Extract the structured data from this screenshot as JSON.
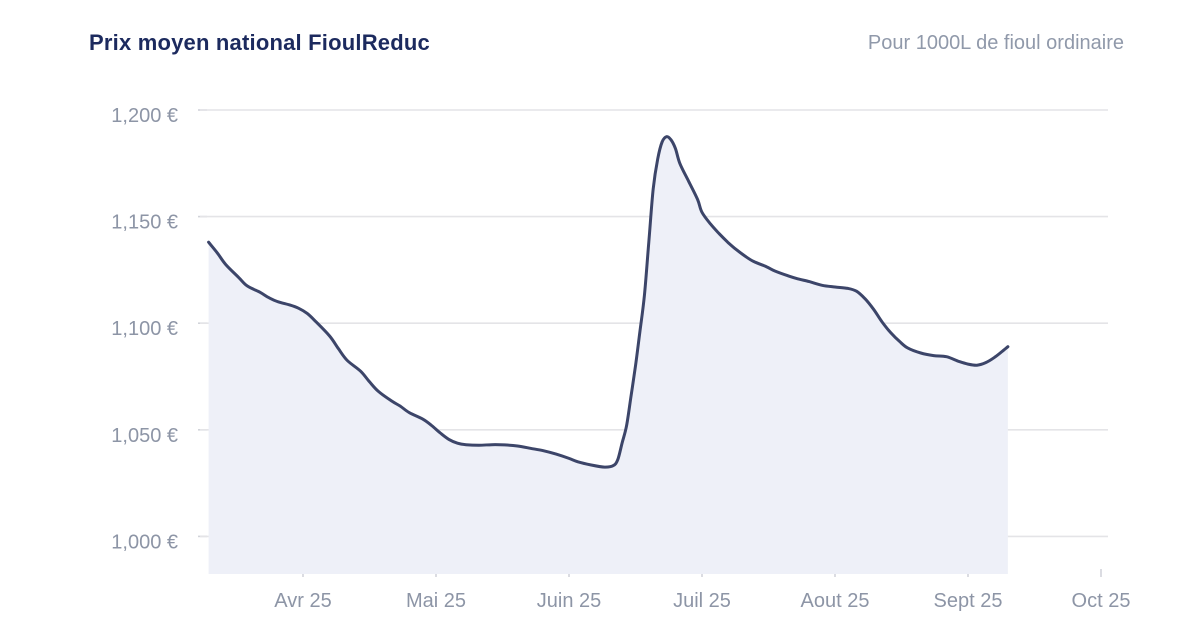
{
  "header": {
    "title": "Prix moyen national FioulReduc",
    "subtitle": "Pour 1000L de fioul ordinaire"
  },
  "colors": {
    "background": "#ffffff",
    "title": "#1c2a5e",
    "subtitle": "#9099aa",
    "axis_label": "#8d95a6",
    "gridline": "#e4e4e7",
    "tick": "#d2d4da",
    "line": "#3c4569",
    "fill": "#eef0f8"
  },
  "chart_data": {
    "type": "area",
    "title": "Prix moyen national FioulReduc",
    "subtitle": "Pour 1000L de fioul ordinaire",
    "series_name": "Prix moyen national",
    "unit": "EUR",
    "currency_symbol": "€",
    "grid": "horizontal",
    "legend": "none",
    "ylim": [
      1000,
      1200
    ],
    "y_ticks": [
      {
        "value": 1200,
        "label": "1,200 €"
      },
      {
        "value": 1150,
        "label": "1,150 €"
      },
      {
        "value": 1100,
        "label": "1,100 €"
      },
      {
        "value": 1050,
        "label": "1,050 €"
      },
      {
        "value": 1000,
        "label": "1,000 €"
      }
    ],
    "x_tick_labels": [
      "Avr 25",
      "Mai 25",
      "Juin 25",
      "Juil 25",
      "Aout 25",
      "Sept 25",
      "Oct 25"
    ],
    "points": [
      {
        "date": "2025-03-10",
        "value": 1138
      },
      {
        "date": "2025-03-12",
        "value": 1133
      },
      {
        "date": "2025-03-14",
        "value": 1127.5
      },
      {
        "date": "2025-03-17",
        "value": 1121.5
      },
      {
        "date": "2025-03-19",
        "value": 1117.5
      },
      {
        "date": "2025-03-22",
        "value": 1114.5
      },
      {
        "date": "2025-03-24",
        "value": 1112
      },
      {
        "date": "2025-03-26",
        "value": 1110.2
      },
      {
        "date": "2025-03-29",
        "value": 1108.5
      },
      {
        "date": "2025-03-31",
        "value": 1107
      },
      {
        "date": "2025-04-02",
        "value": 1104.5
      },
      {
        "date": "2025-04-04",
        "value": 1100.5
      },
      {
        "date": "2025-04-07",
        "value": 1094
      },
      {
        "date": "2025-04-09",
        "value": 1088
      },
      {
        "date": "2025-04-11",
        "value": 1082.5
      },
      {
        "date": "2025-04-14",
        "value": 1077.5
      },
      {
        "date": "2025-04-16",
        "value": 1072.5
      },
      {
        "date": "2025-04-18",
        "value": 1068
      },
      {
        "date": "2025-04-21",
        "value": 1063.5
      },
      {
        "date": "2025-04-23",
        "value": 1061
      },
      {
        "date": "2025-04-25",
        "value": 1058
      },
      {
        "date": "2025-04-28",
        "value": 1055
      },
      {
        "date": "2025-04-30",
        "value": 1052
      },
      {
        "date": "2025-05-02",
        "value": 1048.5
      },
      {
        "date": "2025-05-04",
        "value": 1045.5
      },
      {
        "date": "2025-05-06",
        "value": 1043.7
      },
      {
        "date": "2025-05-08",
        "value": 1043
      },
      {
        "date": "2025-05-11",
        "value": 1042.8
      },
      {
        "date": "2025-05-14",
        "value": 1043
      },
      {
        "date": "2025-05-17",
        "value": 1042.9
      },
      {
        "date": "2025-05-20",
        "value": 1042.4
      },
      {
        "date": "2025-05-23",
        "value": 1041.3
      },
      {
        "date": "2025-05-26",
        "value": 1040.2
      },
      {
        "date": "2025-05-29",
        "value": 1038.6
      },
      {
        "date": "2025-06-01",
        "value": 1036.6
      },
      {
        "date": "2025-06-03",
        "value": 1035
      },
      {
        "date": "2025-06-06",
        "value": 1033.5
      },
      {
        "date": "2025-06-09",
        "value": 1032.5
      },
      {
        "date": "2025-06-11",
        "value": 1033.2
      },
      {
        "date": "2025-06-12",
        "value": 1036
      },
      {
        "date": "2025-06-13",
        "value": 1044
      },
      {
        "date": "2025-06-14",
        "value": 1052
      },
      {
        "date": "2025-06-15",
        "value": 1066
      },
      {
        "date": "2025-06-16",
        "value": 1080
      },
      {
        "date": "2025-06-17",
        "value": 1096
      },
      {
        "date": "2025-06-18",
        "value": 1113
      },
      {
        "date": "2025-06-19",
        "value": 1138
      },
      {
        "date": "2025-06-20",
        "value": 1163
      },
      {
        "date": "2025-06-21",
        "value": 1177
      },
      {
        "date": "2025-06-22",
        "value": 1185
      },
      {
        "date": "2025-06-23",
        "value": 1187.5
      },
      {
        "date": "2025-06-24",
        "value": 1186
      },
      {
        "date": "2025-06-25",
        "value": 1182
      },
      {
        "date": "2025-06-26",
        "value": 1175
      },
      {
        "date": "2025-06-28",
        "value": 1166.5
      },
      {
        "date": "2025-06-30",
        "value": 1158
      },
      {
        "date": "2025-07-01",
        "value": 1152
      },
      {
        "date": "2025-07-03",
        "value": 1146.5
      },
      {
        "date": "2025-07-05",
        "value": 1142
      },
      {
        "date": "2025-07-07",
        "value": 1138
      },
      {
        "date": "2025-07-09",
        "value": 1134.5
      },
      {
        "date": "2025-07-11",
        "value": 1131.5
      },
      {
        "date": "2025-07-13",
        "value": 1129
      },
      {
        "date": "2025-07-16",
        "value": 1126.5
      },
      {
        "date": "2025-07-18",
        "value": 1124.5
      },
      {
        "date": "2025-07-21",
        "value": 1122.3
      },
      {
        "date": "2025-07-23",
        "value": 1121
      },
      {
        "date": "2025-07-26",
        "value": 1119.5
      },
      {
        "date": "2025-07-29",
        "value": 1117.8
      },
      {
        "date": "2025-08-01",
        "value": 1117
      },
      {
        "date": "2025-08-04",
        "value": 1116.3
      },
      {
        "date": "2025-08-06",
        "value": 1115
      },
      {
        "date": "2025-08-08",
        "value": 1111.5
      },
      {
        "date": "2025-08-10",
        "value": 1106.5
      },
      {
        "date": "2025-08-12",
        "value": 1100.5
      },
      {
        "date": "2025-08-14",
        "value": 1095.5
      },
      {
        "date": "2025-08-16",
        "value": 1091.5
      },
      {
        "date": "2025-08-18",
        "value": 1088.3
      },
      {
        "date": "2025-08-21",
        "value": 1086
      },
      {
        "date": "2025-08-24",
        "value": 1084.8
      },
      {
        "date": "2025-08-27",
        "value": 1084.3
      },
      {
        "date": "2025-08-30",
        "value": 1082
      },
      {
        "date": "2025-09-01",
        "value": 1080.8
      },
      {
        "date": "2025-09-03",
        "value": 1080.3
      },
      {
        "date": "2025-09-05",
        "value": 1081.5
      },
      {
        "date": "2025-09-07",
        "value": 1084
      },
      {
        "date": "2025-09-09",
        "value": 1087.3
      },
      {
        "date": "2025-09-10",
        "value": 1089
      }
    ]
  }
}
